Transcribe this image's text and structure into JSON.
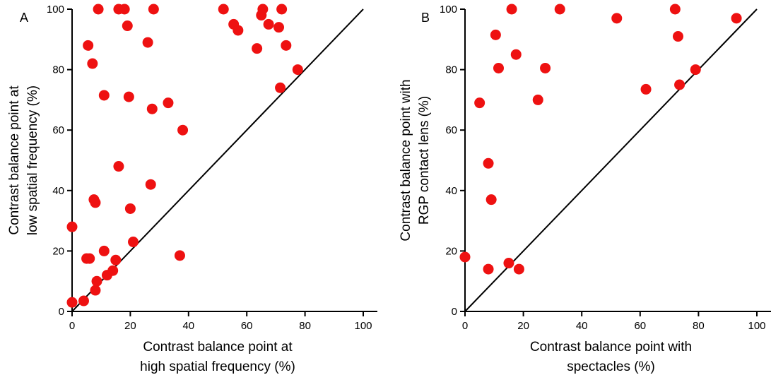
{
  "chart_data": [
    {
      "type": "scatter",
      "panel_label": "A",
      "xlabel_lines": [
        "Contrast balance point at",
        "high spatial frequency (%)"
      ],
      "ylabel_lines": [
        "Contrast balance point at",
        "low spatial frequency (%)"
      ],
      "xlim": [
        0,
        100
      ],
      "ylim": [
        0,
        100
      ],
      "xticks": [
        "0",
        "20",
        "40",
        "60",
        "80",
        "100"
      ],
      "yticks": [
        "0",
        "20",
        "40",
        "60",
        "80",
        "100"
      ],
      "grid": false,
      "point_color": "#ee1111",
      "reference_line": "identity (y = x)",
      "x": [
        0,
        0,
        4,
        5,
        6,
        5.5,
        7,
        8,
        7.5,
        8,
        8.5,
        9,
        11,
        11,
        12,
        14,
        15,
        16,
        16,
        18,
        19,
        19.5,
        20,
        21,
        26,
        27,
        27.5,
        28,
        33,
        37,
        38,
        52,
        55.5,
        57,
        63.5,
        65,
        65.5,
        67.5,
        71,
        72,
        71.5,
        73.5,
        77.5
      ],
      "y": [
        28,
        3,
        3.5,
        17.5,
        17.5,
        88,
        82,
        36,
        37,
        7,
        10,
        100,
        71.5,
        20,
        12,
        13.5,
        17,
        48,
        100,
        100,
        94.5,
        71,
        34,
        23,
        89,
        42,
        67,
        100,
        69,
        18.5,
        60,
        100,
        95,
        93,
        87,
        98,
        100,
        95,
        94,
        100,
        74,
        88,
        80
      ]
    },
    {
      "type": "scatter",
      "panel_label": "B",
      "xlabel_lines": [
        "Contrast balance point with",
        "spectacles (%)"
      ],
      "ylabel_lines": [
        "Contrast balance point with",
        "RGP contact lens (%)"
      ],
      "xlim": [
        0,
        100
      ],
      "ylim": [
        0,
        100
      ],
      "xticks": [
        "0",
        "20",
        "40",
        "60",
        "80",
        "100"
      ],
      "yticks": [
        "0",
        "20",
        "40",
        "60",
        "80",
        "100"
      ],
      "grid": false,
      "point_color": "#ee1111",
      "reference_line": "identity (y = x)",
      "x": [
        0,
        5,
        8,
        8,
        9,
        10.5,
        11.5,
        15,
        16,
        17.5,
        18.5,
        25,
        27.5,
        32.5,
        52,
        62,
        72,
        73,
        73.5,
        79,
        93
      ],
      "y": [
        18,
        69,
        14,
        49,
        37,
        91.5,
        80.5,
        16,
        100,
        85,
        14,
        70,
        80.5,
        100,
        97,
        73.5,
        100,
        91,
        75,
        80,
        97
      ]
    }
  ]
}
